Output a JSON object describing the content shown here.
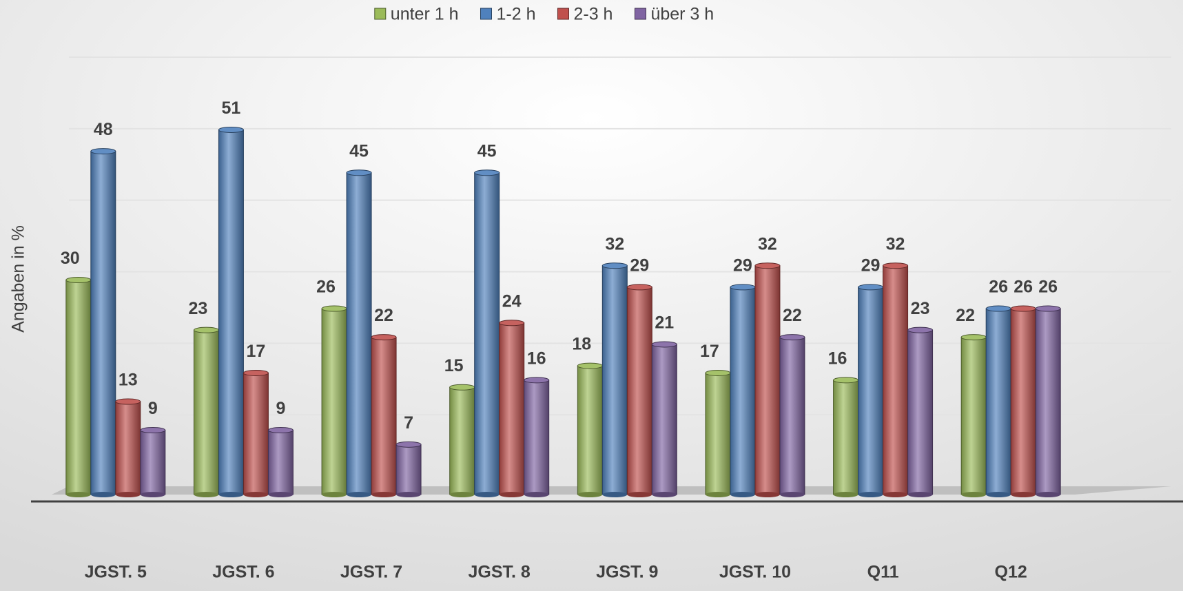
{
  "chart_data": {
    "type": "bar",
    "y_label": "Angaben in %",
    "categories": [
      "JGST. 5",
      "JGST. 6",
      "JGST. 7",
      "JGST. 8",
      "JGST. 9",
      "JGST. 10",
      "Q11",
      "Q12"
    ],
    "series": [
      {
        "name": "unter 1 h",
        "color": "#9bbb59",
        "values": [
          30,
          23,
          26,
          15,
          18,
          17,
          16,
          22
        ]
      },
      {
        "name": "1-2 h",
        "color": "#4f81bd",
        "values": [
          48,
          51,
          45,
          45,
          32,
          29,
          29,
          26
        ]
      },
      {
        "name": "2-3 h",
        "color": "#c0504d",
        "values": [
          13,
          17,
          22,
          24,
          29,
          32,
          32,
          26
        ]
      },
      {
        "name": "über 3 h",
        "color": "#8064a2",
        "values": [
          9,
          9,
          7,
          16,
          21,
          22,
          23,
          26
        ]
      }
    ],
    "ylim": [
      0,
      60
    ],
    "yticks": [
      0,
      10,
      20,
      30,
      40,
      50,
      60
    ],
    "grid": true,
    "legend": "top"
  }
}
